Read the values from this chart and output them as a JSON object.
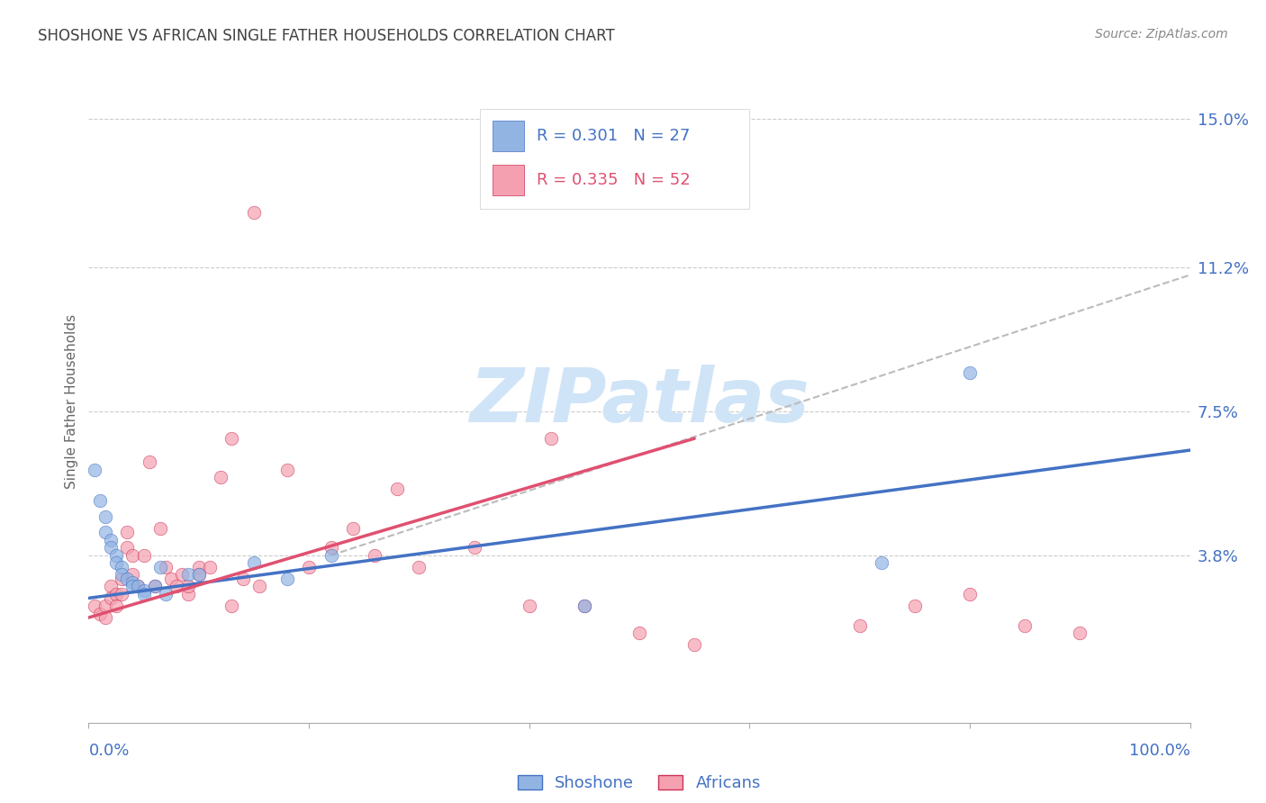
{
  "title": "SHOSHONE VS AFRICAN SINGLE FATHER HOUSEHOLDS CORRELATION CHART",
  "source_text": "Source: ZipAtlas.com",
  "ylabel": "Single Father Households",
  "R_blue": 0.301,
  "N_blue": 27,
  "R_pink": 0.335,
  "N_pink": 52,
  "blue_color": "#92b4e3",
  "pink_color": "#f4a0b0",
  "blue_line_color": "#4472c4",
  "pink_line_color": "#e05070",
  "blue_marker_edge": "#4472c4",
  "pink_marker_edge": "#cc3355",
  "grid_color": "#cccccc",
  "ref_line_color": "#bbbbbb",
  "watermark_color": "#d0e4f7",
  "title_color": "#404040",
  "source_color": "#888888",
  "axis_label_color": "#4472c4",
  "ylabel_color": "#666666",
  "background_color": "#ffffff",
  "xmin": 0.0,
  "xmax": 1.0,
  "ymin": -0.005,
  "ymax": 0.16,
  "ytick_vals": [
    0.038,
    0.075,
    0.112,
    0.15
  ],
  "ytick_labels": [
    "3.8%",
    "7.5%",
    "11.2%",
    "15.0%"
  ],
  "blue_line_x": [
    0.0,
    1.0
  ],
  "blue_line_y": [
    0.027,
    0.065
  ],
  "pink_line_x": [
    0.0,
    0.55
  ],
  "pink_line_y": [
    0.022,
    0.068
  ],
  "ref_line_x": [
    0.22,
    1.0
  ],
  "ref_line_y": [
    0.038,
    0.11
  ],
  "blue_scatter_x": [
    0.005,
    0.01,
    0.015,
    0.015,
    0.02,
    0.02,
    0.025,
    0.025,
    0.03,
    0.03,
    0.035,
    0.04,
    0.04,
    0.045,
    0.05,
    0.05,
    0.06,
    0.065,
    0.07,
    0.09,
    0.1,
    0.15,
    0.18,
    0.22,
    0.45,
    0.72,
    0.8
  ],
  "blue_scatter_y": [
    0.06,
    0.052,
    0.048,
    0.044,
    0.042,
    0.04,
    0.038,
    0.036,
    0.035,
    0.033,
    0.032,
    0.031,
    0.03,
    0.03,
    0.029,
    0.028,
    0.03,
    0.035,
    0.028,
    0.033,
    0.033,
    0.036,
    0.032,
    0.038,
    0.025,
    0.036,
    0.085
  ],
  "pink_scatter_x": [
    0.005,
    0.01,
    0.015,
    0.015,
    0.02,
    0.02,
    0.025,
    0.025,
    0.03,
    0.03,
    0.035,
    0.035,
    0.04,
    0.04,
    0.045,
    0.05,
    0.055,
    0.06,
    0.065,
    0.07,
    0.075,
    0.08,
    0.085,
    0.09,
    0.1,
    0.11,
    0.12,
    0.13,
    0.14,
    0.155,
    0.18,
    0.2,
    0.22,
    0.24,
    0.26,
    0.28,
    0.3,
    0.35,
    0.4,
    0.42,
    0.45,
    0.5,
    0.55,
    0.7,
    0.75,
    0.8,
    0.85,
    0.9,
    0.09,
    0.1,
    0.13,
    0.15
  ],
  "pink_scatter_y": [
    0.025,
    0.023,
    0.025,
    0.022,
    0.03,
    0.027,
    0.028,
    0.025,
    0.032,
    0.028,
    0.044,
    0.04,
    0.038,
    0.033,
    0.03,
    0.038,
    0.062,
    0.03,
    0.045,
    0.035,
    0.032,
    0.03,
    0.033,
    0.028,
    0.035,
    0.035,
    0.058,
    0.068,
    0.032,
    0.03,
    0.06,
    0.035,
    0.04,
    0.045,
    0.038,
    0.055,
    0.035,
    0.04,
    0.025,
    0.068,
    0.025,
    0.018,
    0.015,
    0.02,
    0.025,
    0.028,
    0.02,
    0.018,
    0.03,
    0.033,
    0.025,
    0.126
  ]
}
